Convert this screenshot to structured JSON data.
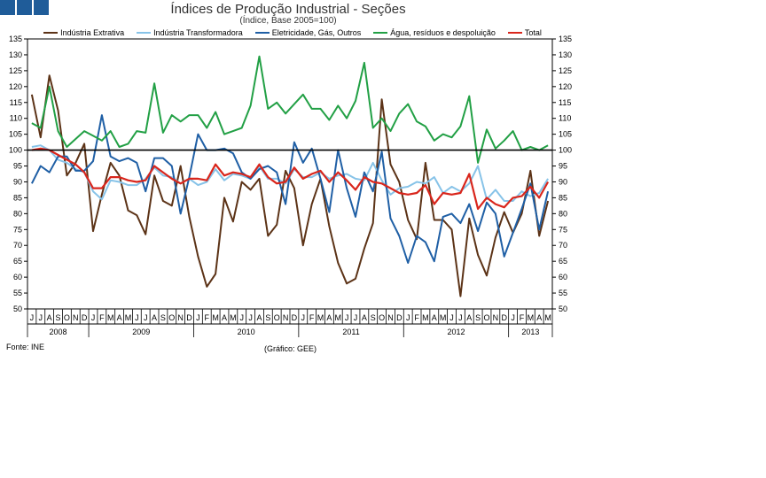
{
  "header": {
    "title": "Índices de Produção Industrial - Seções",
    "subtitle": "(Índice, Base 2005=100)",
    "logo_color": "#1f5c99"
  },
  "footer": {
    "source": "Fonte: INE",
    "credit": "(Gráfico: GEE)"
  },
  "chart_data": {
    "type": "line",
    "title": "Índices de Produção Industrial - Seções",
    "subtitle": "(Índice, Base 2005=100)",
    "xlabel": "",
    "ylabel": "",
    "ylim": [
      50,
      135
    ],
    "yticks": [
      50,
      55,
      60,
      65,
      70,
      75,
      80,
      85,
      90,
      95,
      100,
      105,
      110,
      115,
      120,
      125,
      130,
      135
    ],
    "reference_line": 100,
    "legend_position": "top",
    "categories": [
      "J",
      "J",
      "A",
      "S",
      "O",
      "N",
      "D",
      "J",
      "F",
      "M",
      "A",
      "M",
      "J",
      "J",
      "A",
      "S",
      "O",
      "N",
      "D",
      "J",
      "F",
      "M",
      "A",
      "M",
      "J",
      "J",
      "A",
      "S",
      "O",
      "N",
      "D",
      "J",
      "F",
      "M",
      "A",
      "M",
      "J",
      "J",
      "A",
      "S",
      "O",
      "N",
      "D",
      "J",
      "F",
      "M",
      "A",
      "M",
      "J",
      "J",
      "A",
      "S",
      "O",
      "N",
      "D",
      "J",
      "F",
      "M",
      "A",
      "M"
    ],
    "year_groups": [
      {
        "label": "2008",
        "start": 0,
        "end": 6
      },
      {
        "label": "2009",
        "start": 7,
        "end": 18
      },
      {
        "label": "2010",
        "start": 19,
        "end": 30
      },
      {
        "label": "2011",
        "start": 31,
        "end": 42
      },
      {
        "label": "2012",
        "start": 43,
        "end": 54
      },
      {
        "label": "2013",
        "start": 55,
        "end": 59
      }
    ],
    "series": [
      {
        "name": "Indústria Extrativa",
        "color": "#5c3317",
        "values": [
          117.5,
          104,
          123.5,
          112.5,
          92,
          96,
          102,
          74.5,
          86,
          96,
          92,
          81,
          79.5,
          73.5,
          92,
          84,
          82.5,
          95,
          79,
          66.5,
          57,
          61,
          85,
          77.5,
          90,
          87.5,
          91,
          73,
          76.5,
          93.5,
          88,
          70,
          83,
          91,
          76,
          64.5,
          58,
          59.5,
          69,
          77,
          116,
          95.5,
          90,
          78,
          72,
          96,
          78,
          78,
          75,
          54,
          78.5,
          67,
          60.5,
          72.5,
          80.5,
          74,
          80,
          93.5,
          73,
          84
        ]
      },
      {
        "name": "Indústria Transformadora",
        "color": "#87c3e8",
        "values": [
          101,
          101.5,
          100,
          97,
          96,
          94,
          93,
          87,
          84.5,
          90.5,
          90,
          89,
          89,
          91,
          94.5,
          92,
          91.5,
          89.5,
          91,
          89,
          90,
          94,
          90.5,
          92.5,
          92,
          91,
          95,
          91,
          91,
          89.5,
          94,
          91.5,
          91.5,
          93,
          91,
          92,
          92.5,
          91,
          90.5,
          96,
          90.5,
          86,
          88,
          88.5,
          90,
          89.5,
          91.5,
          86.5,
          88.5,
          87,
          89.5,
          95,
          84.5,
          87.5,
          84,
          84,
          87,
          85.5,
          86.5,
          91
        ]
      },
      {
        "name": "Eletricidade, Gás, Outros",
        "color": "#1f5fa5",
        "values": [
          89.5,
          95,
          93,
          98,
          98,
          93.5,
          93.5,
          96.5,
          111,
          98,
          96.5,
          97.5,
          96,
          87,
          97.5,
          97.5,
          95,
          80,
          91.5,
          105,
          100,
          100,
          100.5,
          99,
          93,
          91,
          94,
          95,
          93,
          83,
          102.5,
          96,
          100.5,
          91,
          80.5,
          100,
          88,
          79,
          93,
          87,
          99.5,
          78.5,
          73,
          64.5,
          73,
          71,
          65,
          79,
          80,
          77,
          83,
          74.5,
          83.5,
          80,
          66.5,
          74,
          81.5,
          89.5,
          75,
          87
        ]
      },
      {
        "name": "Água, resíduos e despoluição",
        "color": "#22a045",
        "values": [
          108.5,
          107,
          120,
          106,
          101,
          103.5,
          106,
          104.5,
          103,
          106,
          101,
          102,
          106,
          105.5,
          121,
          105.5,
          111,
          109,
          111,
          111,
          107,
          112,
          105,
          106,
          107,
          114,
          129.5,
          113,
          115,
          111.5,
          114.5,
          117.5,
          113,
          113,
          109.5,
          114,
          110,
          115.5,
          127.5,
          107,
          110,
          106,
          111.5,
          114.5,
          109,
          107.5,
          103,
          105,
          104,
          107.5,
          117,
          96,
          106.5,
          100.5,
          103,
          106,
          100,
          101,
          100,
          101.5
        ]
      },
      {
        "name": "Total",
        "color": "#d9261c",
        "values": [
          100,
          100.5,
          100,
          98.5,
          97,
          95.5,
          93,
          88,
          88,
          91.5,
          91.5,
          90.5,
          90,
          90.5,
          95,
          93,
          91,
          89.5,
          91,
          91,
          90.5,
          95.5,
          92,
          93,
          92.5,
          91.5,
          95.5,
          91.5,
          89.5,
          90,
          94.5,
          91,
          92.5,
          93.5,
          90,
          93,
          90.5,
          87.5,
          91.5,
          90,
          89.5,
          88,
          86.5,
          86,
          86.5,
          89,
          83,
          86.5,
          86,
          86.5,
          92.5,
          81.5,
          85,
          83,
          82,
          85,
          85.5,
          88.5,
          85,
          90
        ]
      }
    ]
  }
}
